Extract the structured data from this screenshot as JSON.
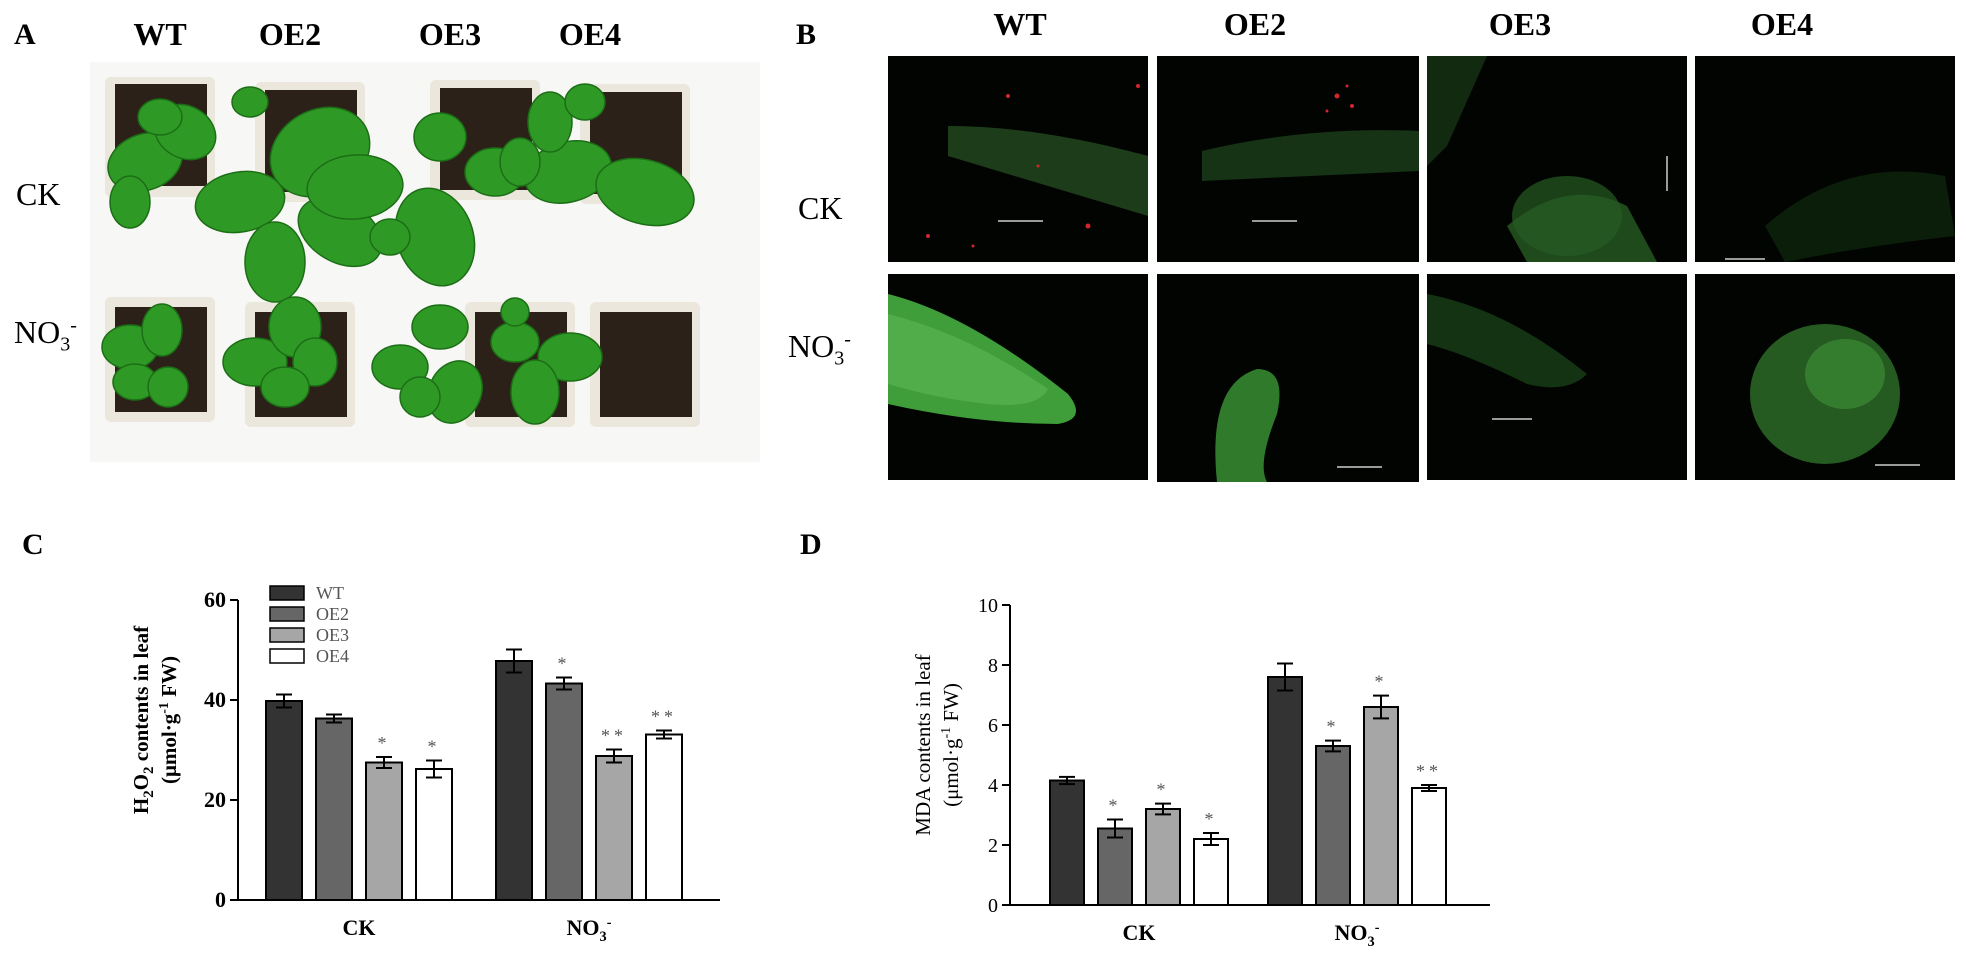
{
  "panel_labels": {
    "a": "A",
    "b": "B",
    "c": "C",
    "d": "D"
  },
  "genotypes": [
    "WT",
    "OE2",
    "OE3",
    "OE4"
  ],
  "treatments": [
    {
      "main": "CK",
      "sub": "",
      "sup": ""
    },
    {
      "main": "NO",
      "sub": "3",
      "sup": "-"
    }
  ],
  "colors": {
    "WT": "#333333",
    "OE2": "#666666",
    "OE3": "#a6a6a6",
    "OE4": "#ffffff",
    "leaf": "#2e9a25",
    "leaf_dark": "#1c6e16",
    "soil": "#2b2118",
    "pot": "#ece7dc",
    "fluor": "#3f9d3a",
    "fluor_bg": "#020402",
    "speck": "#d1262b"
  },
  "chart_data": [
    {
      "type": "bar",
      "panel": "C",
      "categories": [
        "CK",
        "NO3-"
      ],
      "series": [
        {
          "name": "WT",
          "values": [
            39.8,
            47.8
          ],
          "errors": [
            1.3,
            2.3
          ],
          "sig": [
            "",
            ""
          ]
        },
        {
          "name": "OE2",
          "values": [
            36.3,
            43.3
          ],
          "errors": [
            0.8,
            1.2
          ],
          "sig": [
            "",
            "*"
          ]
        },
        {
          "name": "OE3",
          "values": [
            27.5,
            28.8
          ],
          "errors": [
            1.1,
            1.3
          ],
          "sig": [
            "*",
            "**"
          ]
        },
        {
          "name": "OE4",
          "values": [
            26.2,
            33.1
          ],
          "errors": [
            1.7,
            0.8
          ],
          "sig": [
            "*",
            "**"
          ]
        }
      ],
      "ylabel": "H2O2 contents in leaf (μmol·g-1 FW)",
      "ylim": [
        0,
        60
      ],
      "yticks": [
        0,
        20,
        40,
        60
      ],
      "legend": "top-left"
    },
    {
      "type": "bar",
      "panel": "D",
      "categories": [
        "CK",
        "NO3-"
      ],
      "series": [
        {
          "name": "WT",
          "values": [
            4.15,
            7.6
          ],
          "errors": [
            0.12,
            0.45
          ],
          "sig": [
            "",
            ""
          ]
        },
        {
          "name": "OE2",
          "values": [
            2.55,
            5.3
          ],
          "errors": [
            0.3,
            0.18
          ],
          "sig": [
            "*",
            "*"
          ]
        },
        {
          "name": "OE3",
          "values": [
            3.2,
            6.6
          ],
          "errors": [
            0.18,
            0.38
          ],
          "sig": [
            "*",
            "*"
          ]
        },
        {
          "name": "OE4",
          "values": [
            2.2,
            3.9
          ],
          "errors": [
            0.2,
            0.1
          ],
          "sig": [
            "*",
            "**"
          ]
        }
      ],
      "ylabel": "MDA contents in leaf (μmol·g-1 FW)",
      "ylim": [
        0,
        10
      ],
      "yticks": [
        0,
        2,
        4,
        6,
        8,
        10
      ],
      "legend": "none"
    }
  ]
}
